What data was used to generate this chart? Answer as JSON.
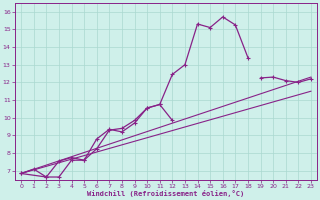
{
  "xlabel": "Windchill (Refroidissement éolien,°C)",
  "background_color": "#cff0ea",
  "grid_color": "#aad8d0",
  "line_color": "#882288",
  "xlim": [
    -0.5,
    23.5
  ],
  "ylim": [
    6.5,
    16.5
  ],
  "xticks": [
    0,
    1,
    2,
    3,
    4,
    5,
    6,
    7,
    8,
    9,
    10,
    11,
    12,
    13,
    14,
    15,
    16,
    17,
    18,
    19,
    20,
    21,
    22,
    23
  ],
  "yticks": [
    7,
    8,
    9,
    10,
    11,
    12,
    13,
    14,
    15,
    16
  ],
  "series1_x": [
    0,
    1,
    2,
    3,
    4,
    5,
    6,
    7,
    8,
    9,
    10,
    11,
    12,
    13,
    14,
    15,
    16,
    17,
    18
  ],
  "series1_y": [
    6.85,
    7.1,
    6.65,
    6.65,
    7.6,
    7.6,
    8.8,
    9.35,
    9.2,
    9.7,
    10.55,
    10.75,
    12.45,
    13.0,
    15.3,
    15.1,
    15.7,
    15.25,
    13.4
  ],
  "series2_x": [
    0,
    2,
    3,
    4,
    5,
    6,
    7,
    8,
    9,
    10,
    11,
    12,
    19,
    20,
    21,
    22,
    23
  ],
  "series2_y": [
    6.85,
    6.65,
    7.55,
    7.75,
    7.6,
    8.25,
    9.3,
    9.4,
    9.85,
    10.55,
    10.75,
    9.85,
    12.25,
    12.3,
    12.1,
    12.0,
    12.2
  ],
  "trend1_x": [
    0,
    23
  ],
  "trend1_y": [
    6.85,
    12.3
  ],
  "trend2_x": [
    0,
    23
  ],
  "trend2_y": [
    6.85,
    11.5
  ]
}
